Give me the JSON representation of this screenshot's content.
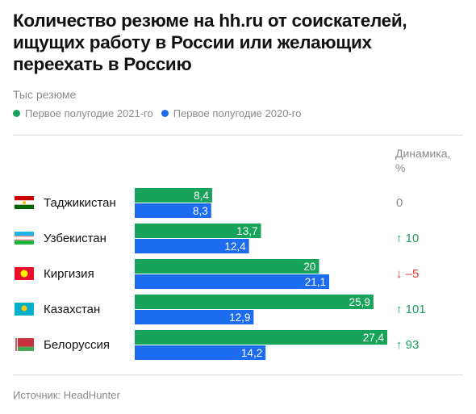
{
  "title": "Количество резюме на hh.ru от соискателей, ищущих работу в России или желающих переехать в Россию",
  "unit": "Тыс резюме",
  "legend": [
    {
      "label": "Первое полугодие 2021-го",
      "color": "#17a45a"
    },
    {
      "label": "Первое полугодие 2020-го",
      "color": "#1d6cf0"
    }
  ],
  "dynamics_header": [
    "Динамика,",
    "%"
  ],
  "source": "Источник:  HeadHunter",
  "colors": {
    "up": "#17a45a",
    "down": "#e8392c",
    "neutral": "#8a8a8a"
  },
  "chart_data": {
    "type": "bar",
    "orientation": "horizontal",
    "categories": [
      "Таджикистан",
      "Узбекистан",
      "Киргизия",
      "Казахстан",
      "Белоруссия"
    ],
    "flags": [
      "flag-tajikistan-icon",
      "flag-uzbekistan-icon",
      "flag-kyrgyzstan-icon",
      "flag-kazakhstan-icon",
      "flag-belarus-icon"
    ],
    "series": [
      {
        "name": "Первое полугодие 2021-го",
        "values": [
          8.4,
          13.7,
          20,
          25.9,
          27.4
        ],
        "labels": [
          "8,4",
          "13,7",
          "20",
          "25,9",
          "27,4"
        ]
      },
      {
        "name": "Первое полугодие 2020-го",
        "values": [
          8.3,
          12.4,
          21.1,
          12.9,
          14.2
        ],
        "labels": [
          "8,3",
          "12,4",
          "21,1",
          "12,9",
          "14,2"
        ]
      }
    ],
    "dynamics": [
      {
        "text": "0",
        "direction": "none"
      },
      {
        "text": "10",
        "direction": "up"
      },
      {
        "text": "–5",
        "direction": "down"
      },
      {
        "text": "101",
        "direction": "up"
      },
      {
        "text": "93",
        "direction": "up"
      }
    ],
    "xlim": [
      0,
      27.4
    ]
  }
}
